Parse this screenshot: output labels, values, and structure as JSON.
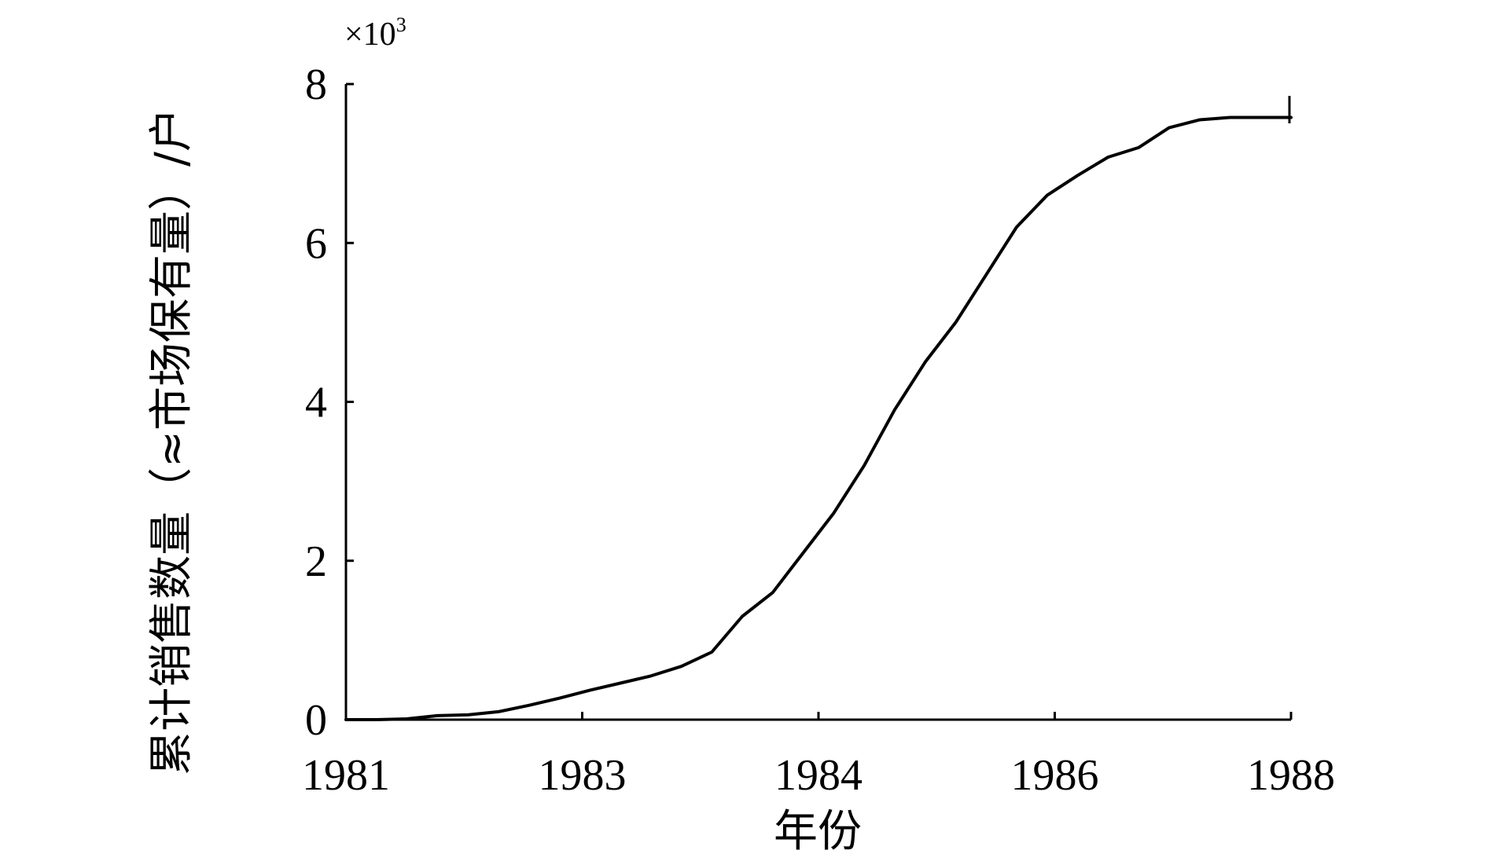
{
  "chart_data": {
    "type": "line",
    "title": "",
    "xlabel": "年份",
    "ylabel": "累计销售数量（≈市场保有量）/户",
    "y_multiplier": "×10",
    "y_multiplier_exp": "3",
    "x_tick_labels": [
      "1981",
      "1983",
      "1984",
      "1986",
      "1988"
    ],
    "y_tick_labels": [
      "0",
      "2",
      "4",
      "6",
      "8"
    ],
    "y_ticks": [
      0,
      2,
      4,
      6,
      8
    ],
    "ylim": [
      0,
      8
    ],
    "grid": false,
    "legend": "none",
    "series": [
      {
        "values": [
          0.0,
          0.0,
          0.01,
          0.05,
          0.06,
          0.1,
          0.18,
          0.27,
          0.37,
          0.46,
          0.55,
          0.67,
          0.85,
          1.3,
          1.6,
          2.1,
          2.6,
          3.2,
          3.9,
          4.5,
          5.0,
          5.6,
          6.2,
          6.6,
          6.85,
          7.08,
          7.2,
          7.45,
          7.55,
          7.58,
          7.58,
          7.58
        ]
      }
    ],
    "line_color": "#000000"
  }
}
